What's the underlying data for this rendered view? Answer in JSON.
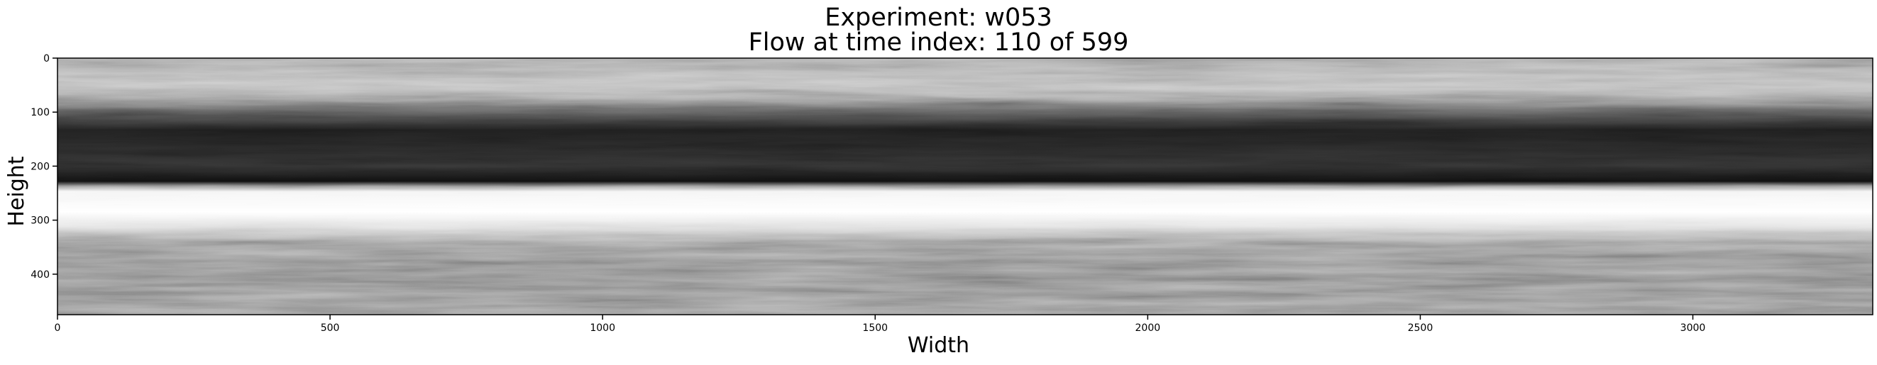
{
  "chart_data": {
    "type": "heatmap",
    "title": [
      "Experiment: w053",
      "Flow at time index: 110 of 599"
    ],
    "xlabel": "Width",
    "ylabel": "Height",
    "xlim": [
      0,
      3330
    ],
    "ylim": [
      475,
      0
    ],
    "xticks": [
      0,
      500,
      1000,
      1500,
      2000,
      2500,
      3000
    ],
    "yticks": [
      0,
      100,
      200,
      300,
      400
    ],
    "colormap": "grayscale",
    "image_description_bands": [
      {
        "from": 0,
        "to": 95,
        "tone": "light-gray textured"
      },
      {
        "from": 95,
        "to": 230,
        "tone": "dark/black turbulent"
      },
      {
        "from": 230,
        "to": 310,
        "tone": "bright white layer"
      },
      {
        "from": 310,
        "to": 475,
        "tone": "mid-gray striated"
      }
    ]
  }
}
